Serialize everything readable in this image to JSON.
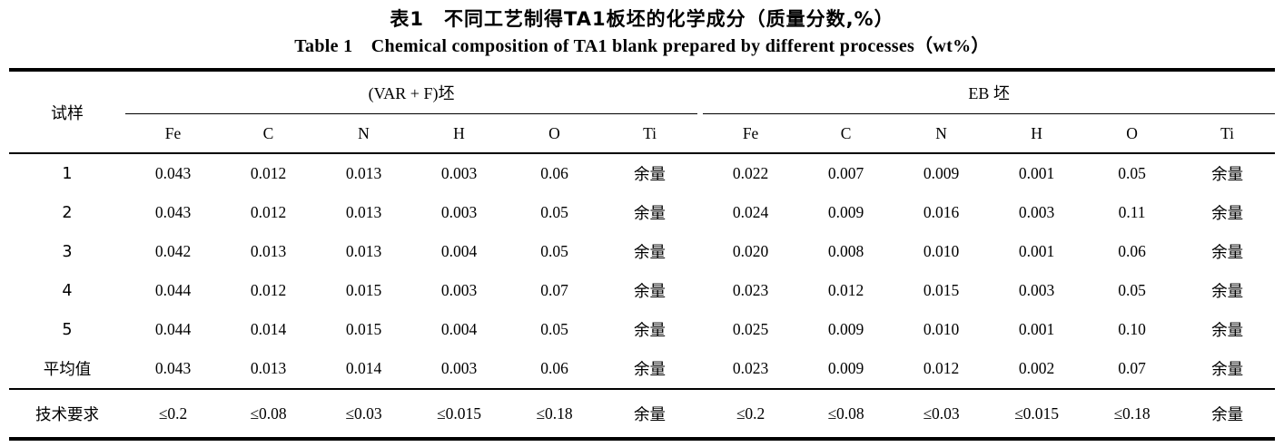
{
  "titles": {
    "zh": "表1　不同工艺制得TA1板坯的化学成分（质量分数,%）",
    "en": "Table 1　Chemical composition of TA1 blank prepared by different processes（wt%）"
  },
  "table": {
    "corner_label": "试样",
    "groups": [
      {
        "label": "(VAR + F)坯",
        "columns": [
          "Fe",
          "C",
          "N",
          "H",
          "O",
          "Ti"
        ]
      },
      {
        "label": "EB 坯",
        "columns": [
          "Fe",
          "C",
          "N",
          "H",
          "O",
          "Ti"
        ]
      }
    ],
    "rows": [
      {
        "kind": "data",
        "label": "1",
        "cells": [
          "0.043",
          "0.012",
          "0.013",
          "0.003",
          "0.06",
          "余量",
          "0.022",
          "0.007",
          "0.009",
          "0.001",
          "0.05",
          "余量"
        ]
      },
      {
        "kind": "data",
        "label": "2",
        "cells": [
          "0.043",
          "0.012",
          "0.013",
          "0.003",
          "0.05",
          "余量",
          "0.024",
          "0.009",
          "0.016",
          "0.003",
          "0.11",
          "余量"
        ]
      },
      {
        "kind": "data",
        "label": "3",
        "cells": [
          "0.042",
          "0.013",
          "0.013",
          "0.004",
          "0.05",
          "余量",
          "0.020",
          "0.008",
          "0.010",
          "0.001",
          "0.06",
          "余量"
        ]
      },
      {
        "kind": "data",
        "label": "4",
        "cells": [
          "0.044",
          "0.012",
          "0.015",
          "0.003",
          "0.07",
          "余量",
          "0.023",
          "0.012",
          "0.015",
          "0.003",
          "0.05",
          "余量"
        ]
      },
      {
        "kind": "data",
        "label": "5",
        "cells": [
          "0.044",
          "0.014",
          "0.015",
          "0.004",
          "0.05",
          "余量",
          "0.025",
          "0.009",
          "0.010",
          "0.001",
          "0.10",
          "余量"
        ]
      },
      {
        "kind": "data",
        "label": "平均值",
        "cells": [
          "0.043",
          "0.013",
          "0.014",
          "0.003",
          "0.06",
          "余量",
          "0.023",
          "0.009",
          "0.012",
          "0.002",
          "0.07",
          "余量"
        ]
      },
      {
        "kind": "requirement",
        "label": "技术要求",
        "cells": [
          "≤0.2",
          "≤0.08",
          "≤0.03",
          "≤0.015",
          "≤0.18",
          "余量",
          "≤0.2",
          "≤0.08",
          "≤0.03",
          "≤0.015",
          "≤0.18",
          "余量"
        ]
      }
    ]
  }
}
